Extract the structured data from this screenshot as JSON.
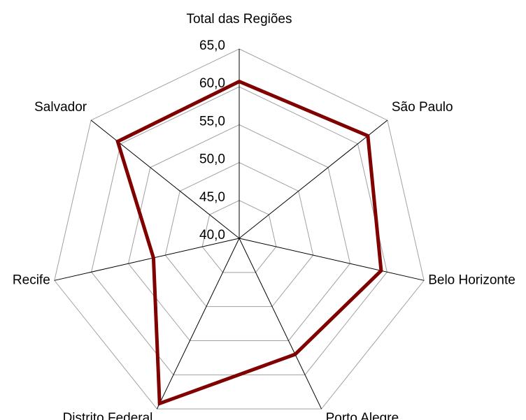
{
  "chart_data": {
    "type": "radar",
    "categories": [
      "Total das Regiões",
      "São Paulo",
      "Belo Horizonte",
      "Porto Alegre",
      "Distrito Federal",
      "Recife",
      "Salvador"
    ],
    "series": [
      {
        "color": "#800000",
        "values": [
          60.7,
          61.7,
          59.2,
          57.0,
          64.2,
          51.6,
          60.5
        ]
      }
    ],
    "ylim": [
      40,
      65
    ],
    "yticks": [
      {
        "value": 40,
        "label": "40,0"
      },
      {
        "value": 45,
        "label": "45,0"
      },
      {
        "value": 50,
        "label": "50,0"
      },
      {
        "value": 55,
        "label": "55,0"
      },
      {
        "value": 60,
        "label": "60,0"
      },
      {
        "value": 65,
        "label": "65,0"
      }
    ],
    "grid": true
  }
}
